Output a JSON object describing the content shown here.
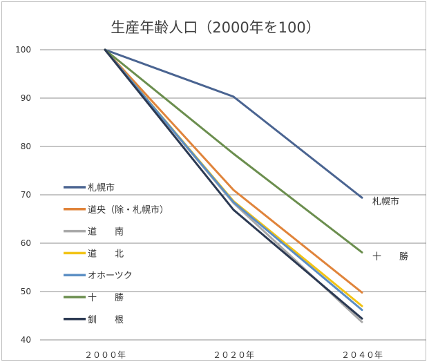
{
  "chart_data": {
    "type": "line",
    "title": "生産年齢人口（2000年を100）",
    "categories": [
      "２０００年",
      "２０２０年",
      "２０４０年"
    ],
    "ylim": [
      40,
      100
    ],
    "yticks": [
      40,
      50,
      60,
      70,
      80,
      90,
      100
    ],
    "grid": true,
    "legend_position": "left",
    "series": [
      {
        "name": "札幌市",
        "values": [
          100,
          90.3,
          69.4
        ],
        "color": "#4a6491",
        "end_label": "札幌市"
      },
      {
        "name": "道央（除・札幌市）",
        "values": [
          100,
          71.0,
          49.8
        ],
        "color": "#e0843b"
      },
      {
        "name": "道　　南",
        "values": [
          100,
          68.3,
          43.7
        ],
        "color": "#a9a9a9"
      },
      {
        "name": "道　　北",
        "values": [
          100,
          68.7,
          47.0
        ],
        "color": "#f2c314"
      },
      {
        "name": "オホーツク",
        "values": [
          100,
          68.5,
          46.2
        ],
        "color": "#5b8ec4"
      },
      {
        "name": "十　　勝",
        "values": [
          100,
          78.5,
          58.1
        ],
        "color": "#6b8e4e",
        "end_label": "十　　勝"
      },
      {
        "name": "釧　　根",
        "values": [
          100,
          66.9,
          44.4
        ],
        "color": "#2c3a53"
      }
    ]
  }
}
